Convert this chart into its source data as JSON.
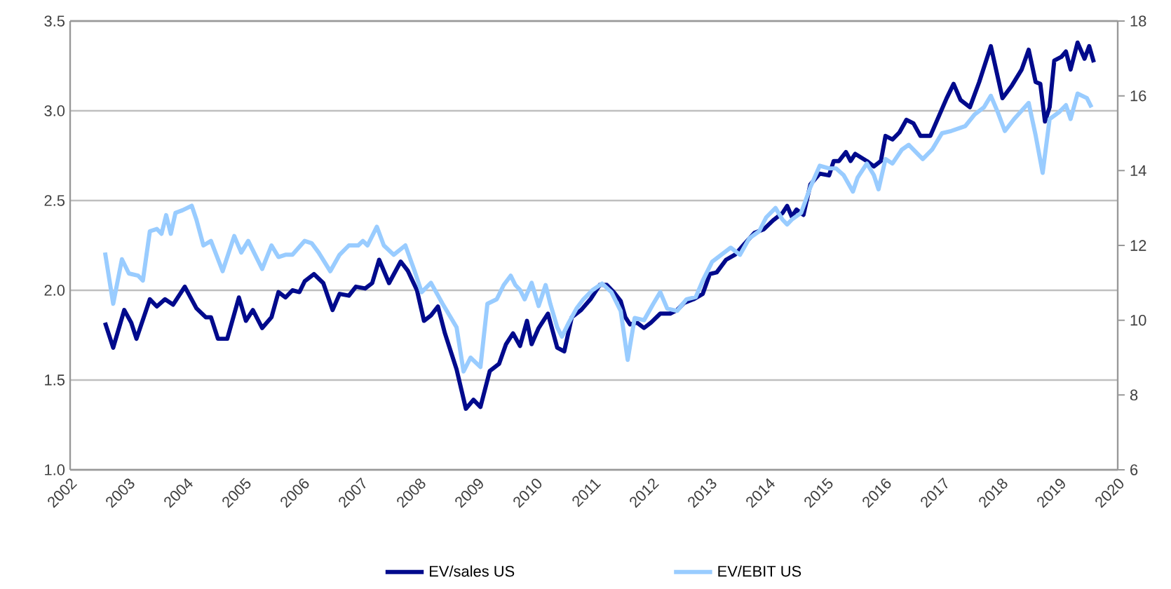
{
  "chart_data": {
    "type": "line",
    "xlim": [
      2002,
      2020
    ],
    "xticks": [
      2002,
      2003,
      2004,
      2005,
      2006,
      2007,
      2008,
      2009,
      2010,
      2011,
      2012,
      2013,
      2014,
      2015,
      2016,
      2017,
      2018,
      2019,
      2020
    ],
    "ylim": [
      1.0,
      3.5
    ],
    "yticks": [
      {
        "value": 1.0,
        "label": "1.0"
      },
      {
        "value": 1.5,
        "label": "1.5"
      },
      {
        "value": 2.0,
        "label": "2.0"
      },
      {
        "value": 2.5,
        "label": "2.5"
      },
      {
        "value": 3.0,
        "label": "3.0"
      },
      {
        "value": 3.5,
        "label": "3.5"
      }
    ],
    "y2lim": [
      6,
      18
    ],
    "y2ticks": [
      6,
      8,
      10,
      12,
      14,
      16,
      18
    ],
    "grid": "y",
    "legend": "bottom",
    "series": [
      {
        "name": "EV/sales US",
        "color": "#000a8c",
        "axis": "y",
        "x": [
          2002.6,
          2002.74,
          2002.93,
          2003.05,
          2003.14,
          2003.37,
          2003.49,
          2003.63,
          2003.77,
          2003.97,
          2004.17,
          2004.33,
          2004.42,
          2004.54,
          2004.7,
          2004.9,
          2005.02,
          2005.14,
          2005.3,
          2005.46,
          2005.58,
          2005.7,
          2005.82,
          2005.94,
          2006.03,
          2006.19,
          2006.35,
          2006.51,
          2006.63,
          2006.79,
          2006.91,
          2007.07,
          2007.19,
          2007.31,
          2007.48,
          2007.68,
          2007.8,
          2007.96,
          2008.08,
          2008.2,
          2008.32,
          2008.44,
          2008.64,
          2008.8,
          2008.93,
          2009.05,
          2009.21,
          2009.37,
          2009.49,
          2009.61,
          2009.73,
          2009.85,
          2009.93,
          2010.05,
          2010.21,
          2010.37,
          2010.49,
          2010.62,
          2010.78,
          2010.94,
          2011.1,
          2011.22,
          2011.34,
          2011.46,
          2011.54,
          2011.62,
          2011.74,
          2011.86,
          2011.98,
          2012.14,
          2012.31,
          2012.43,
          2012.55,
          2012.71,
          2012.87,
          2012.99,
          2013.11,
          2013.27,
          2013.43,
          2013.59,
          2013.76,
          2013.92,
          2014.08,
          2014.24,
          2014.32,
          2014.4,
          2014.48,
          2014.6,
          2014.72,
          2014.88,
          2015.04,
          2015.12,
          2015.21,
          2015.33,
          2015.41,
          2015.49,
          2015.69,
          2015.81,
          2015.93,
          2016.01,
          2016.13,
          2016.25,
          2016.37,
          2016.49,
          2016.61,
          2016.78,
          2016.94,
          2017.06,
          2017.18,
          2017.3,
          2017.46,
          2017.62,
          2017.82,
          2018.02,
          2018.18,
          2018.35,
          2018.47,
          2018.59,
          2018.67,
          2018.75,
          2018.83,
          2018.91,
          2019.03,
          2019.11,
          2019.19,
          2019.31,
          2019.43,
          2019.51,
          2019.59
        ],
        "values": [
          1.82,
          1.68,
          1.89,
          1.82,
          1.73,
          1.95,
          1.91,
          1.95,
          1.92,
          2.02,
          1.9,
          1.85,
          1.85,
          1.73,
          1.73,
          1.96,
          1.83,
          1.89,
          1.79,
          1.85,
          1.99,
          1.96,
          2.0,
          1.99,
          2.05,
          2.09,
          2.04,
          1.89,
          1.98,
          1.97,
          2.02,
          2.01,
          2.04,
          2.17,
          2.04,
          2.16,
          2.11,
          2.0,
          1.83,
          1.86,
          1.91,
          1.76,
          1.56,
          1.34,
          1.39,
          1.35,
          1.55,
          1.59,
          1.7,
          1.76,
          1.69,
          1.83,
          1.7,
          1.79,
          1.87,
          1.68,
          1.66,
          1.85,
          1.89,
          1.95,
          2.03,
          2.03,
          1.99,
          1.94,
          1.85,
          1.81,
          1.82,
          1.79,
          1.82,
          1.87,
          1.87,
          1.89,
          1.93,
          1.95,
          1.98,
          2.09,
          2.1,
          2.17,
          2.2,
          2.26,
          2.32,
          2.34,
          2.39,
          2.43,
          2.47,
          2.41,
          2.45,
          2.42,
          2.59,
          2.65,
          2.64,
          2.72,
          2.72,
          2.77,
          2.72,
          2.76,
          2.72,
          2.69,
          2.72,
          2.86,
          2.84,
          2.88,
          2.95,
          2.93,
          2.86,
          2.86,
          2.98,
          3.07,
          3.15,
          3.06,
          3.02,
          3.16,
          3.36,
          3.07,
          3.14,
          3.23,
          3.34,
          3.16,
          3.15,
          2.94,
          3.02,
          3.28,
          3.3,
          3.33,
          3.23,
          3.38,
          3.29,
          3.36,
          3.27
        ]
      },
      {
        "name": "EV/EBIT US",
        "color": "#99ccff",
        "axis": "y2",
        "x": [
          2002.6,
          2002.74,
          2002.89,
          2003.01,
          2003.17,
          2003.25,
          2003.37,
          2003.49,
          2003.57,
          2003.65,
          2003.73,
          2003.81,
          2003.93,
          2004.09,
          2004.17,
          2004.29,
          2004.42,
          2004.62,
          2004.82,
          2004.94,
          2005.06,
          2005.3,
          2005.46,
          2005.58,
          2005.7,
          2005.82,
          2006.03,
          2006.15,
          2006.27,
          2006.47,
          2006.63,
          2006.79,
          2006.95,
          2007.03,
          2007.11,
          2007.27,
          2007.39,
          2007.56,
          2007.76,
          2007.92,
          2008.04,
          2008.2,
          2008.4,
          2008.64,
          2008.76,
          2008.88,
          2009.05,
          2009.17,
          2009.33,
          2009.45,
          2009.57,
          2009.65,
          2009.73,
          2009.81,
          2009.93,
          2010.05,
          2010.17,
          2010.25,
          2010.37,
          2010.45,
          2010.57,
          2010.7,
          2010.82,
          2010.98,
          2011.14,
          2011.3,
          2011.46,
          2011.58,
          2011.7,
          2011.86,
          2012.02,
          2012.14,
          2012.26,
          2012.43,
          2012.59,
          2012.75,
          2012.87,
          2013.03,
          2013.19,
          2013.35,
          2013.51,
          2013.67,
          2013.84,
          2013.96,
          2014.12,
          2014.24,
          2014.32,
          2014.4,
          2014.56,
          2014.72,
          2014.88,
          2015.04,
          2015.16,
          2015.29,
          2015.45,
          2015.53,
          2015.69,
          2015.81,
          2015.89,
          2016.01,
          2016.13,
          2016.29,
          2016.41,
          2016.53,
          2016.65,
          2016.81,
          2016.98,
          2017.14,
          2017.38,
          2017.54,
          2017.7,
          2017.82,
          2017.94,
          2018.06,
          2018.22,
          2018.47,
          2018.59,
          2018.71,
          2018.83,
          2018.99,
          2019.11,
          2019.19,
          2019.31,
          2019.47,
          2019.55
        ],
        "values": [
          11.81,
          10.44,
          11.63,
          11.25,
          11.19,
          11.06,
          12.38,
          12.44,
          12.31,
          12.81,
          12.31,
          12.87,
          12.94,
          13.06,
          12.69,
          12.0,
          12.12,
          11.31,
          12.25,
          11.81,
          12.12,
          11.37,
          12.0,
          11.69,
          11.75,
          11.75,
          12.12,
          12.06,
          11.81,
          11.31,
          11.75,
          12.0,
          12.0,
          12.12,
          12.0,
          12.5,
          12.0,
          11.75,
          12.0,
          11.31,
          10.75,
          11.0,
          10.44,
          9.81,
          8.63,
          9.0,
          8.75,
          10.44,
          10.56,
          10.94,
          11.19,
          10.94,
          10.81,
          10.56,
          11.0,
          10.38,
          10.94,
          10.44,
          9.81,
          9.56,
          9.94,
          10.31,
          10.56,
          10.81,
          10.98,
          10.75,
          10.25,
          8.94,
          10.06,
          10.0,
          10.44,
          10.75,
          10.31,
          10.25,
          10.56,
          10.62,
          11.06,
          11.56,
          11.75,
          11.94,
          11.75,
          12.19,
          12.38,
          12.75,
          13.0,
          12.69,
          12.56,
          12.69,
          12.87,
          13.56,
          14.13,
          14.06,
          14.06,
          13.88,
          13.44,
          13.81,
          14.19,
          13.88,
          13.5,
          14.31,
          14.19,
          14.56,
          14.69,
          14.5,
          14.31,
          14.56,
          15.0,
          15.06,
          15.19,
          15.5,
          15.69,
          16.0,
          15.56,
          15.06,
          15.38,
          15.81,
          14.94,
          13.94,
          15.38,
          15.56,
          15.75,
          15.38,
          16.06,
          15.94,
          15.69
        ]
      }
    ]
  }
}
